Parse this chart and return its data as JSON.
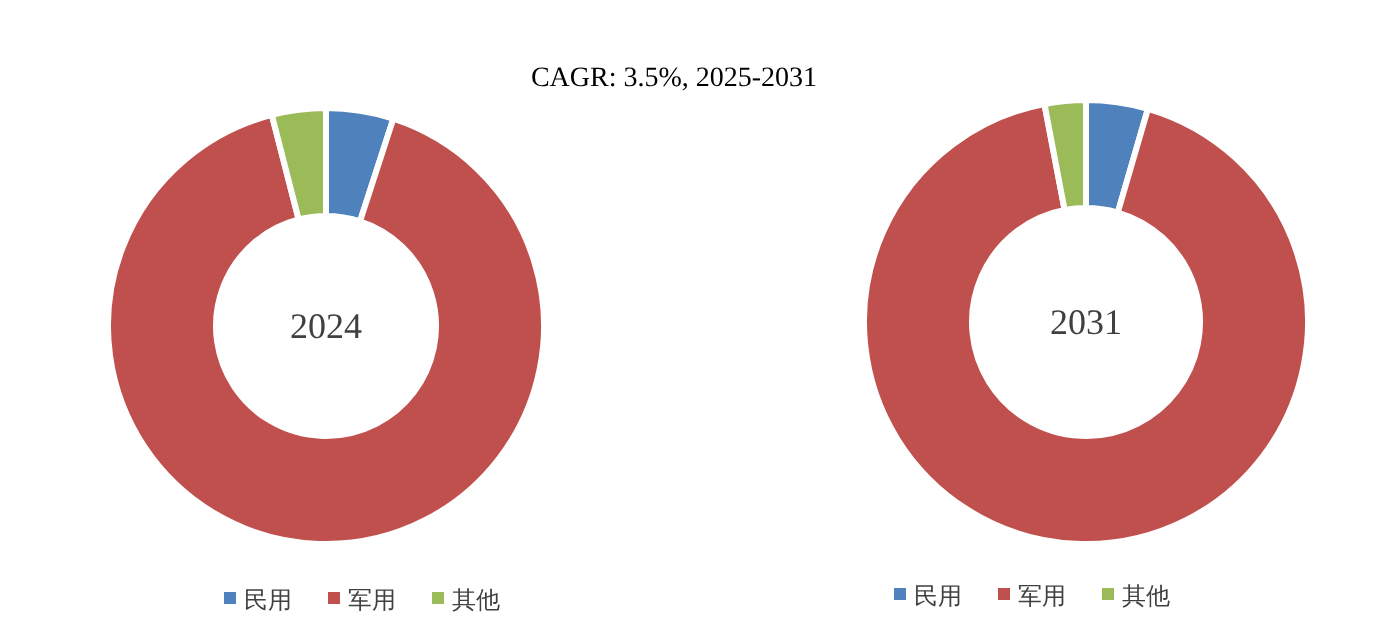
{
  "chart_data": [
    {
      "type": "donut",
      "title": "2024",
      "annotations": [
        "CAGR:  3.5%, 2025-2031"
      ],
      "categories": [
        "民用",
        "军用",
        "其他"
      ],
      "values": [
        5,
        91,
        4
      ],
      "colors": [
        "#4f81bd",
        "#c0504d",
        "#9bbb59"
      ],
      "legend": "bottom"
    },
    {
      "type": "donut",
      "title": "2031",
      "categories": [
        "民用",
        "军用",
        "其他"
      ],
      "values": [
        4.5,
        92.5,
        3
      ],
      "colors": [
        "#4f81bd",
        "#c0504d",
        "#9bbb59"
      ],
      "legend": "bottom"
    }
  ]
}
